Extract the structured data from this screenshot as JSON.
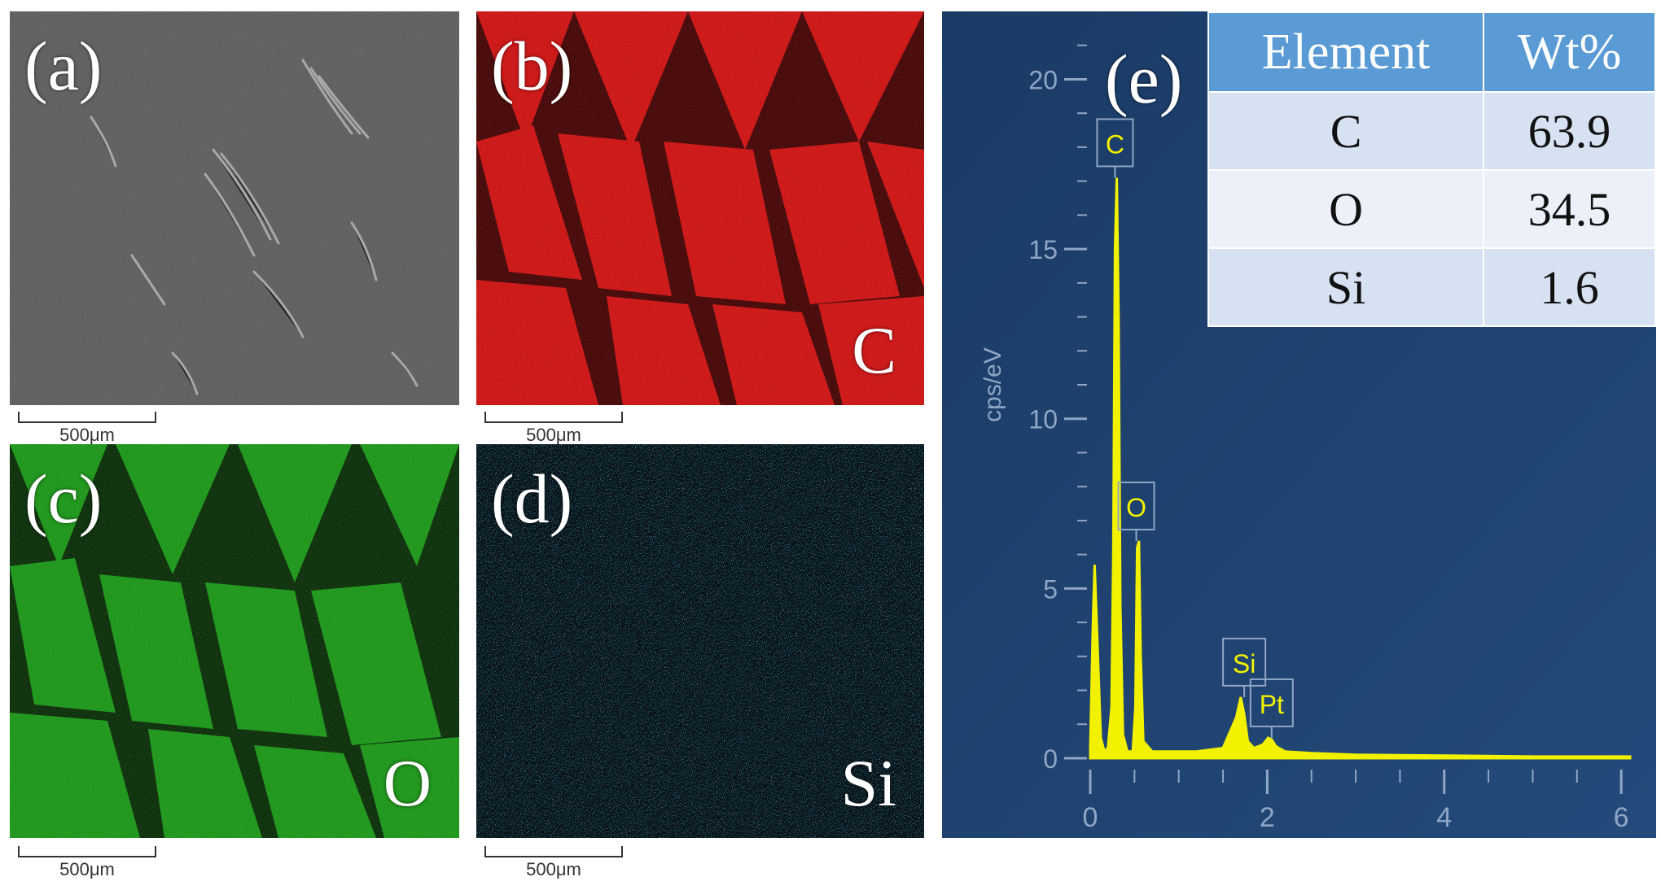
{
  "panels": {
    "a": {
      "label": "(a)",
      "scale": "500μm"
    },
    "b": {
      "label": "(b)",
      "element": "C",
      "scale": "500μm"
    },
    "c": {
      "label": "(c)",
      "element": "O",
      "scale": "500μm"
    },
    "d": {
      "label": "(d)",
      "element": "Si",
      "scale": "500μm"
    },
    "e": {
      "label": "(e)"
    }
  },
  "table": {
    "headers": [
      "Element",
      "Wt%"
    ],
    "rows": [
      {
        "element": "C",
        "wt": "63.9"
      },
      {
        "element": "O",
        "wt": "34.5"
      },
      {
        "element": "Si",
        "wt": "1.6"
      }
    ]
  },
  "colors": {
    "panel_b": "#c41010",
    "panel_c": "#1fa31a",
    "panel_d": "#2fc8d8",
    "spectrum_bg": "#1a3a63",
    "spectrum_line": "#f2f200",
    "table_header": "#5b9bd5"
  },
  "chart_data": {
    "type": "line",
    "title": "",
    "xlabel": "",
    "ylabel": "cps/eV",
    "xlim": [
      0,
      6.1
    ],
    "ylim": [
      0,
      22
    ],
    "x_ticks": [
      "0",
      "2",
      "4",
      "6"
    ],
    "y_ticks": [
      "0",
      "5",
      "10",
      "15",
      "20"
    ],
    "series": [
      {
        "x": [
          0.0,
          0.03,
          0.05,
          0.08,
          0.12,
          0.16,
          0.2,
          0.24,
          0.26,
          0.28,
          0.3,
          0.32,
          0.34,
          0.37,
          0.42,
          0.48,
          0.51,
          0.53,
          0.55,
          0.57,
          0.6,
          0.7,
          0.9,
          1.2,
          1.5,
          1.65,
          1.7,
          1.74,
          1.78,
          1.85,
          1.95,
          2.01,
          2.05,
          2.1,
          2.2,
          2.5,
          3.0,
          4.0,
          5.0,
          6.1
        ],
        "y": [
          0.3,
          4.0,
          5.7,
          3.5,
          0.6,
          0.2,
          0.3,
          1.5,
          6.0,
          15.0,
          17.1,
          13.0,
          4.5,
          0.7,
          0.2,
          0.2,
          1.5,
          6.2,
          6.4,
          3.0,
          0.5,
          0.2,
          0.2,
          0.2,
          0.3,
          1.2,
          1.8,
          1.3,
          0.5,
          0.3,
          0.4,
          0.6,
          0.55,
          0.35,
          0.2,
          0.15,
          0.1,
          0.08,
          0.05,
          0.05
        ]
      }
    ],
    "peak_labels": [
      {
        "text": "C",
        "x": 0.28,
        "y": 17.1
      },
      {
        "text": "O",
        "x": 0.52,
        "y": 6.4
      },
      {
        "text": "Si",
        "x": 1.74,
        "y": 1.8
      },
      {
        "text": "Pt",
        "x": 2.05,
        "y": 0.6
      }
    ]
  }
}
